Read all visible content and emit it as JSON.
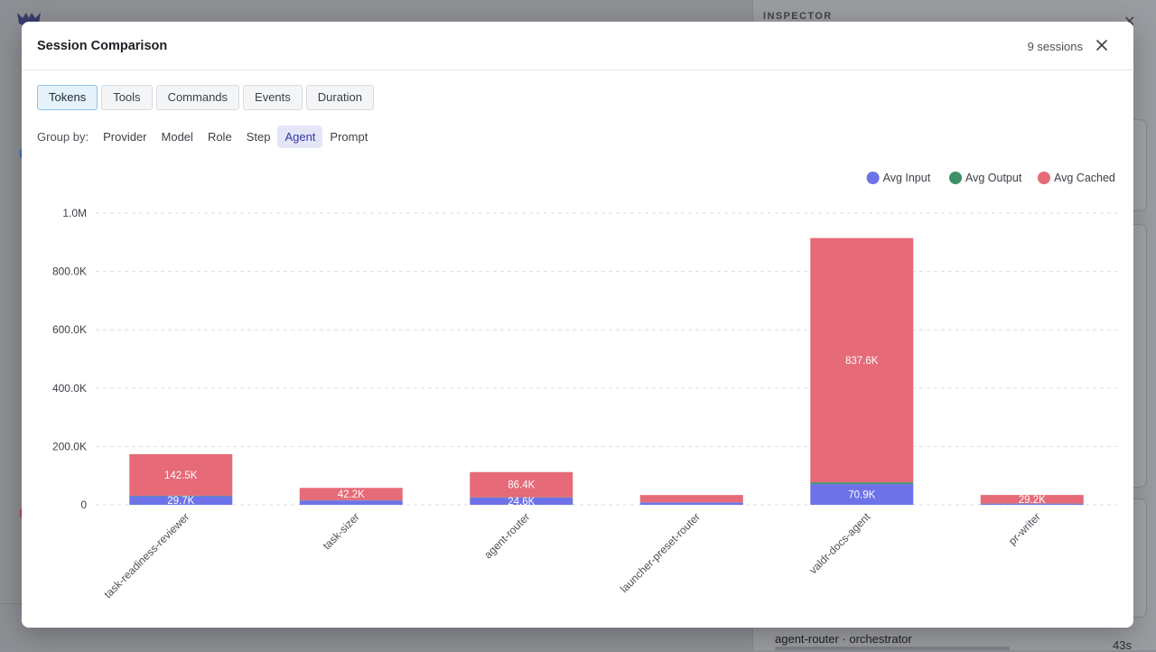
{
  "background": {
    "inspector_title": "INSPECTOR",
    "inspector_close": "✕",
    "row_title": "agent-router · orchestrator",
    "row_time": "43s"
  },
  "modal": {
    "title": "Session Comparison",
    "session_count": "9 sessions",
    "close_icon": "close-icon"
  },
  "tabs": [
    {
      "label": "Tokens",
      "active": true
    },
    {
      "label": "Tools",
      "active": false
    },
    {
      "label": "Commands",
      "active": false
    },
    {
      "label": "Events",
      "active": false
    },
    {
      "label": "Duration",
      "active": false
    }
  ],
  "groupby": {
    "label": "Group by:",
    "options": [
      {
        "label": "Provider",
        "active": false
      },
      {
        "label": "Model",
        "active": false
      },
      {
        "label": "Role",
        "active": false
      },
      {
        "label": "Step",
        "active": false
      },
      {
        "label": "Agent",
        "active": true
      },
      {
        "label": "Prompt",
        "active": false
      }
    ]
  },
  "chart_data": {
    "type": "bar",
    "stacked": true,
    "categories": [
      "task-readiness-reviewer",
      "task-sizer",
      "agent-router",
      "launcher-preset-router",
      "valdr-docs-agent",
      "pr-writer"
    ],
    "series": [
      {
        "name": "Avg Input",
        "color": "#6e72e8",
        "values": [
          29700,
          15000,
          24600,
          8000,
          70900,
          4000
        ],
        "labels": [
          "29.7K",
          "",
          "24.6K",
          "",
          "70.9K",
          ""
        ]
      },
      {
        "name": "Avg Output",
        "color": "#3f8f68",
        "values": [
          1500,
          800,
          1200,
          500,
          6000,
          500
        ],
        "labels": [
          "",
          "",
          "",
          "",
          "",
          ""
        ]
      },
      {
        "name": "Avg Cached",
        "color": "#e66a77",
        "values": [
          142500,
          42200,
          86400,
          25000,
          837600,
          29200
        ],
        "labels": [
          "142.5K",
          "42.2K",
          "86.4K",
          "",
          "837.6K",
          "29.2K"
        ]
      }
    ],
    "yticks": [
      "0",
      "200.0K",
      "400.0K",
      "600.0K",
      "800.0K",
      "1.0M"
    ],
    "ylim": [
      0,
      1000000
    ],
    "grid": true,
    "legend_position": "top-right"
  }
}
